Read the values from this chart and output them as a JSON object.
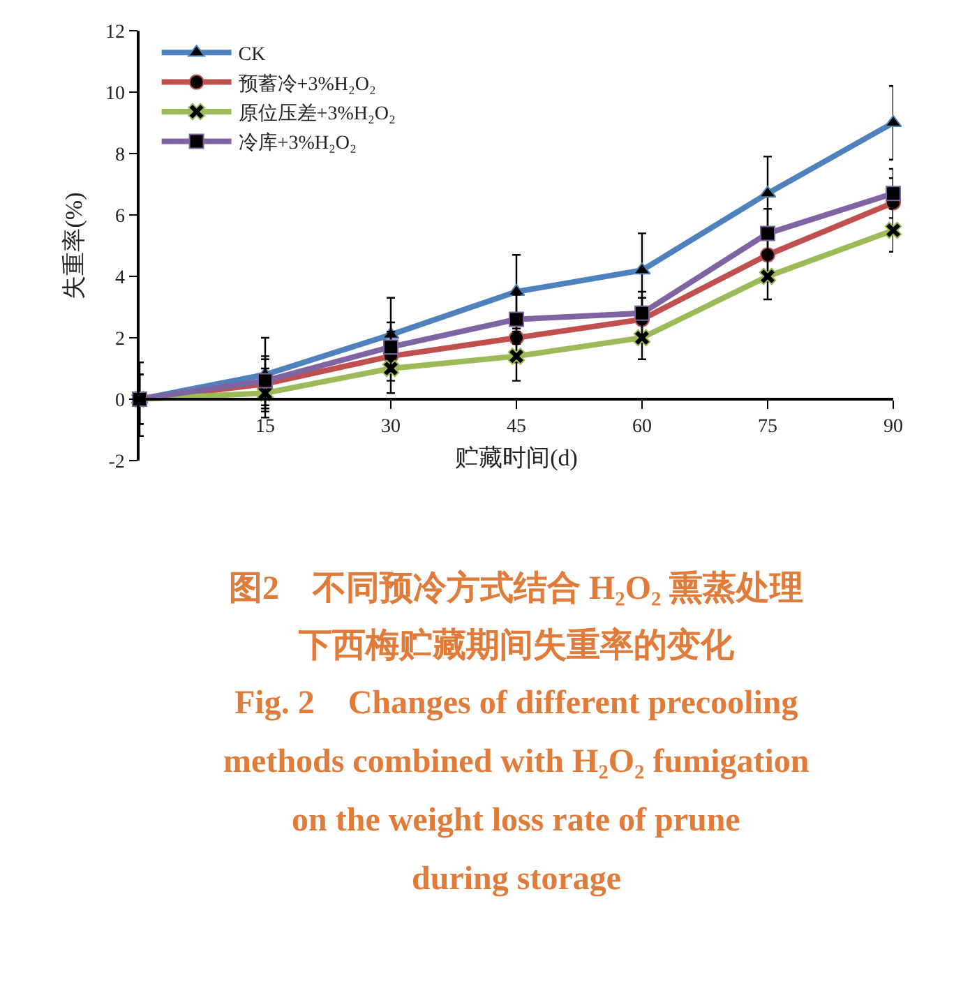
{
  "chart_data": {
    "type": "line",
    "xlabel": "贮藏时间(d)",
    "ylabel": "失重率(%)",
    "x": [
      0,
      15,
      30,
      45,
      60,
      75,
      90
    ],
    "xlim": [
      0,
      90
    ],
    "xticks": [
      15,
      30,
      45,
      60,
      75,
      90
    ],
    "ylim": [
      -2,
      12
    ],
    "yticks": [
      -2,
      0,
      2,
      4,
      6,
      8,
      10,
      12
    ],
    "grid": false,
    "legend": "top left",
    "series": [
      {
        "name": "CK",
        "color": "#4f81bd",
        "marker": "triangle",
        "values": [
          0,
          0.8,
          2.1,
          3.5,
          4.2,
          6.7,
          9.0
        ],
        "errors": [
          1.2,
          1.2,
          1.2,
          1.2,
          1.2,
          1.2,
          1.2
        ]
      },
      {
        "name": "预蓄冷+3%H₂O₂",
        "color": "#c0504d",
        "marker": "circle",
        "values": [
          0,
          0.5,
          1.4,
          2.0,
          2.6,
          4.7,
          6.4
        ],
        "errors": [
          0.8,
          0.8,
          0.8,
          0.8,
          0.7,
          0.8,
          0.8
        ]
      },
      {
        "name": "原位压差+3%H₂O₂",
        "color": "#9bbb59",
        "marker": "cross",
        "values": [
          0,
          0.2,
          1.0,
          1.4,
          2.0,
          4.0,
          5.5
        ],
        "errors": [
          0.8,
          0.8,
          0.8,
          0.8,
          0.7,
          0.75,
          0.7
        ]
      },
      {
        "name": "冷库+3%H₂O₂",
        "color": "#8064a2",
        "marker": "square",
        "values": [
          0,
          0.6,
          1.7,
          2.6,
          2.8,
          5.4,
          6.7
        ],
        "errors": [
          0.8,
          0.8,
          0.8,
          0.8,
          0.7,
          0.8,
          0.8
        ]
      }
    ],
    "annotations": [
      "图2　不同预冷方式结合 H₂O₂ 熏蒸处理",
      "下西梅贮藏期间失重率的变化",
      "Fig. 2　Changes of different precooling",
      "methods combined with H₂O₂ fumigation",
      "on the weight loss rate of prune",
      "during storage"
    ]
  }
}
